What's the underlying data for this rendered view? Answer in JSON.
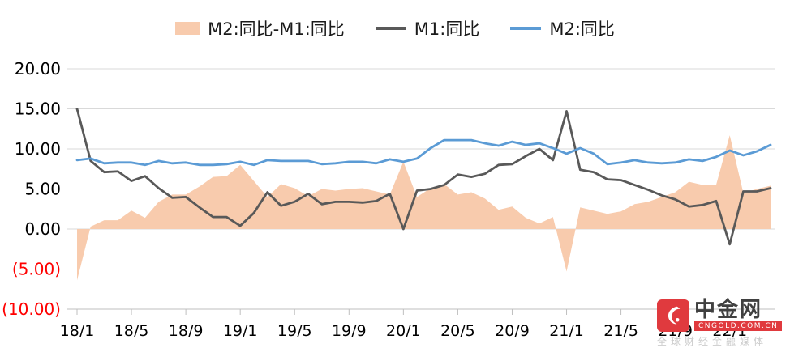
{
  "legend": {
    "items": [
      {
        "label": "M2:同比-M1:同比",
        "type": "area",
        "color": "#f8cbad"
      },
      {
        "label": "M1:同比",
        "type": "line",
        "color": "#595959"
      },
      {
        "label": "M2:同比",
        "type": "line",
        "color": "#5b9bd5"
      }
    ]
  },
  "y_axis": {
    "ticks": [
      {
        "label": "20.00",
        "value": 20,
        "color": "#000000"
      },
      {
        "label": "15.00",
        "value": 15,
        "color": "#000000"
      },
      {
        "label": "10.00",
        "value": 10,
        "color": "#000000"
      },
      {
        "label": "5.00",
        "value": 5,
        "color": "#000000"
      },
      {
        "label": "0.00",
        "value": 0,
        "color": "#000000"
      },
      {
        "label": "(5.00)",
        "value": -5,
        "color": "#ff0000"
      },
      {
        "label": "(10.00)",
        "value": -10,
        "color": "#ff0000"
      }
    ]
  },
  "x_axis": {
    "tick_labels": [
      "18/1",
      "18/5",
      "18/9",
      "19/1",
      "19/5",
      "19/9",
      "20/1",
      "20/5",
      "20/9",
      "21/1",
      "21/5",
      "21/9",
      "22/1"
    ],
    "tick_every": 4
  },
  "chart_data": {
    "type": "line",
    "x": [
      "18/1",
      "18/2",
      "18/3",
      "18/4",
      "18/5",
      "18/6",
      "18/7",
      "18/8",
      "18/9",
      "18/10",
      "18/11",
      "18/12",
      "19/1",
      "19/2",
      "19/3",
      "19/4",
      "19/5",
      "19/6",
      "19/7",
      "19/8",
      "19/9",
      "19/10",
      "19/11",
      "19/12",
      "20/1",
      "20/2",
      "20/3",
      "20/4",
      "20/5",
      "20/6",
      "20/7",
      "20/8",
      "20/9",
      "20/10",
      "20/11",
      "20/12",
      "21/1",
      "21/2",
      "21/3",
      "21/4",
      "21/5",
      "21/6",
      "21/7",
      "21/8",
      "21/9",
      "21/10",
      "21/11",
      "21/12",
      "22/1",
      "22/2",
      "22/3",
      "22/4"
    ],
    "series": [
      {
        "name": "M2:同比-M1:同比",
        "type": "area",
        "color": "#f8cbad",
        "values": [
          -6.4,
          0.3,
          1.1,
          1.1,
          2.3,
          1.4,
          3.4,
          4.3,
          4.3,
          5.3,
          6.5,
          6.6,
          8.0,
          6.0,
          4.0,
          5.6,
          5.1,
          4.1,
          5.0,
          4.8,
          5.0,
          5.1,
          4.7,
          4.3,
          8.4,
          4.0,
          5.1,
          5.6,
          4.3,
          4.6,
          3.8,
          2.4,
          2.8,
          1.4,
          0.7,
          1.5,
          -5.3,
          2.7,
          2.3,
          1.9,
          2.2,
          3.1,
          3.4,
          4.0,
          4.6,
          5.9,
          5.5,
          5.5,
          11.7,
          4.5,
          5.0,
          5.4
        ]
      },
      {
        "name": "M1:同比",
        "type": "line",
        "color": "#595959",
        "values": [
          15.0,
          8.5,
          7.1,
          7.2,
          6.0,
          6.6,
          5.1,
          3.9,
          4.0,
          2.7,
          1.5,
          1.5,
          0.4,
          2.0,
          4.6,
          2.9,
          3.4,
          4.4,
          3.1,
          3.4,
          3.4,
          3.3,
          3.5,
          4.4,
          0.0,
          4.8,
          5.0,
          5.5,
          6.8,
          6.5,
          6.9,
          8.0,
          8.1,
          9.1,
          10.0,
          8.6,
          14.7,
          7.4,
          7.1,
          6.2,
          6.1,
          5.5,
          4.9,
          4.2,
          3.7,
          2.8,
          3.0,
          3.5,
          -1.9,
          4.7,
          4.7,
          5.1
        ]
      },
      {
        "name": "M2:同比",
        "type": "line",
        "color": "#5b9bd5",
        "values": [
          8.6,
          8.8,
          8.2,
          8.3,
          8.3,
          8.0,
          8.5,
          8.2,
          8.3,
          8.0,
          8.0,
          8.1,
          8.4,
          8.0,
          8.6,
          8.5,
          8.5,
          8.5,
          8.1,
          8.2,
          8.4,
          8.4,
          8.2,
          8.7,
          8.4,
          8.8,
          10.1,
          11.1,
          11.1,
          11.1,
          10.7,
          10.4,
          10.9,
          10.5,
          10.7,
          10.1,
          9.4,
          10.1,
          9.4,
          8.1,
          8.3,
          8.6,
          8.3,
          8.2,
          8.3,
          8.7,
          8.5,
          9.0,
          9.8,
          9.2,
          9.7,
          10.5
        ]
      }
    ],
    "ylim": [
      -10,
      20
    ],
    "y_tick_step": 5,
    "grid": true,
    "legend_position": "top"
  },
  "colors": {
    "gridline": "#d9d9d9",
    "axis": "#bfbfbf",
    "tick_text": "#000000",
    "negative_tick_text": "#ff0000",
    "brand_red": "#e03a3e"
  },
  "watermark": {
    "title": "中金网",
    "domain": "CNGOLD.COM.CN",
    "tagline": "全球财经金融媒体"
  }
}
